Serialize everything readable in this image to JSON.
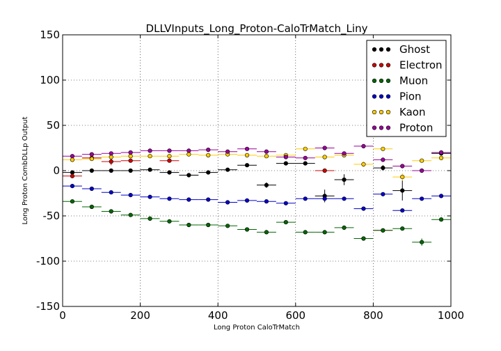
{
  "chart_data": {
    "type": "scatter",
    "title": "DLLVInputs_Long_Proton-CaloTrMatch_Liny",
    "xlabel": "Long Proton CaloTrMatch",
    "ylabel": "Long Proton CombDLLp Output",
    "xlim": [
      0,
      1000
    ],
    "ylim": [
      -150,
      150
    ],
    "xticks": [
      0,
      200,
      400,
      600,
      800,
      1000
    ],
    "yticks": [
      -150,
      -100,
      -50,
      0,
      50,
      100,
      150
    ],
    "grid": true,
    "legend_position": "top-right",
    "bin_width": 50,
    "x": [
      25,
      75,
      125,
      175,
      225,
      275,
      325,
      375,
      425,
      475,
      525,
      575,
      625,
      675,
      725,
      775,
      825,
      875,
      925,
      975
    ],
    "series": [
      {
        "name": "Ghost",
        "color": "#000000",
        "values": [
          -2,
          0,
          0,
          0,
          1,
          -2,
          -5,
          -2,
          1,
          6,
          -16,
          8,
          8,
          -28,
          -10,
          null,
          3,
          -22,
          null,
          19
        ],
        "errors": [
          1,
          1,
          1,
          1,
          1,
          1,
          1,
          1,
          1,
          2,
          3,
          2,
          2,
          7,
          6,
          null,
          3,
          11,
          null,
          2
        ]
      },
      {
        "name": "Electron",
        "color": "#cc0000",
        "values": [
          -6,
          14,
          10,
          11,
          null,
          11,
          null,
          null,
          null,
          null,
          null,
          null,
          null,
          0,
          null,
          null,
          -66,
          null,
          null,
          null
        ],
        "errors": [
          2,
          2,
          4,
          2,
          null,
          2,
          null,
          null,
          null,
          null,
          null,
          null,
          null,
          1,
          null,
          null,
          1,
          null,
          null,
          null
        ]
      },
      {
        "name": "Muon",
        "color": "#006600",
        "values": [
          -34,
          -40,
          -45,
          -49,
          -53,
          -56,
          -60,
          -60,
          -61,
          -65,
          -68,
          -57,
          -68,
          -68,
          -63,
          -75,
          -66,
          -64,
          -79,
          -54
        ],
        "errors": [
          1,
          1,
          1,
          1,
          1,
          1,
          1,
          1,
          1,
          1,
          1,
          1,
          1,
          1,
          2,
          1,
          2,
          2,
          4,
          2
        ]
      },
      {
        "name": "Pion",
        "color": "#0000cc",
        "values": [
          -17,
          -20,
          -24,
          -27,
          -29,
          -31,
          -32,
          -32,
          -35,
          -33,
          -34,
          -36,
          -31,
          -31,
          -31,
          -42,
          -26,
          -44,
          -31,
          -28
        ],
        "errors": [
          1,
          1,
          1,
          1,
          1,
          1,
          1,
          1,
          1,
          1,
          1,
          1,
          1,
          1,
          1,
          1,
          1,
          1,
          1,
          1
        ]
      },
      {
        "name": "Kaon",
        "color": "#ffcc00",
        "values": [
          12,
          13,
          15,
          16,
          16,
          16,
          18,
          17,
          18,
          17,
          16,
          17,
          24,
          15,
          17,
          7,
          24,
          -7,
          11,
          14
        ],
        "errors": [
          1,
          1,
          1,
          1,
          1,
          1,
          1,
          1,
          1,
          1,
          1,
          1,
          1,
          1,
          1,
          3,
          1,
          4,
          2,
          2
        ]
      },
      {
        "name": "Proton",
        "color": "#990099",
        "values": [
          16,
          18,
          19,
          20,
          22,
          22,
          22,
          23,
          21,
          24,
          21,
          15,
          14,
          25,
          19,
          27,
          12,
          5,
          0,
          20
        ],
        "errors": [
          1,
          1,
          1,
          1,
          1,
          1,
          1,
          1,
          1,
          1,
          1,
          1,
          1,
          1,
          1,
          1,
          1,
          1,
          1,
          1
        ]
      }
    ]
  }
}
